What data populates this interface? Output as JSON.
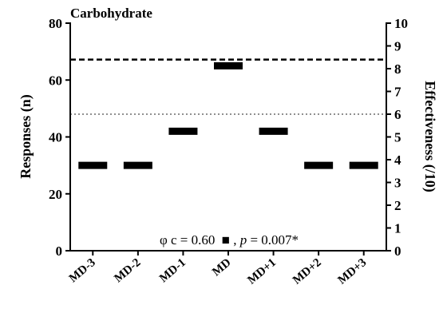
{
  "chart_data": {
    "type": "dot",
    "title": "Carbohydrate",
    "categories": [
      "MD-3",
      "MD-2",
      "MD-1",
      "MD",
      "MD+1",
      "MD+2",
      "MD+3"
    ],
    "series": [
      {
        "values": [
          30,
          30,
          42,
          65,
          42,
          30,
          30
        ],
        "color": "#000000"
      }
    ],
    "ylabel": "Responses (n)",
    "ylim": [
      0,
      80
    ],
    "yticks": [
      "0",
      "20",
      "40",
      "60",
      "80"
    ],
    "y2label": "Effectiveness (/10)",
    "y2lim": [
      0,
      10
    ],
    "y2ticks": [
      "0",
      "1",
      "2",
      "3",
      "4",
      "5",
      "6",
      "7",
      "8",
      "9",
      "10"
    ],
    "reference_lines": [
      {
        "axis": "y2",
        "value": 8.4,
        "style": "dashed",
        "color": "#000000"
      },
      {
        "axis": "y2",
        "value": 6.0,
        "style": "dotted",
        "color": "#808080"
      }
    ],
    "annotation": {
      "phi_label": "φ c = 0.60",
      "separator": ", ",
      "p_symbol": "p",
      "p_value": " = 0.007*"
    },
    "grid": false,
    "legend": "none"
  }
}
